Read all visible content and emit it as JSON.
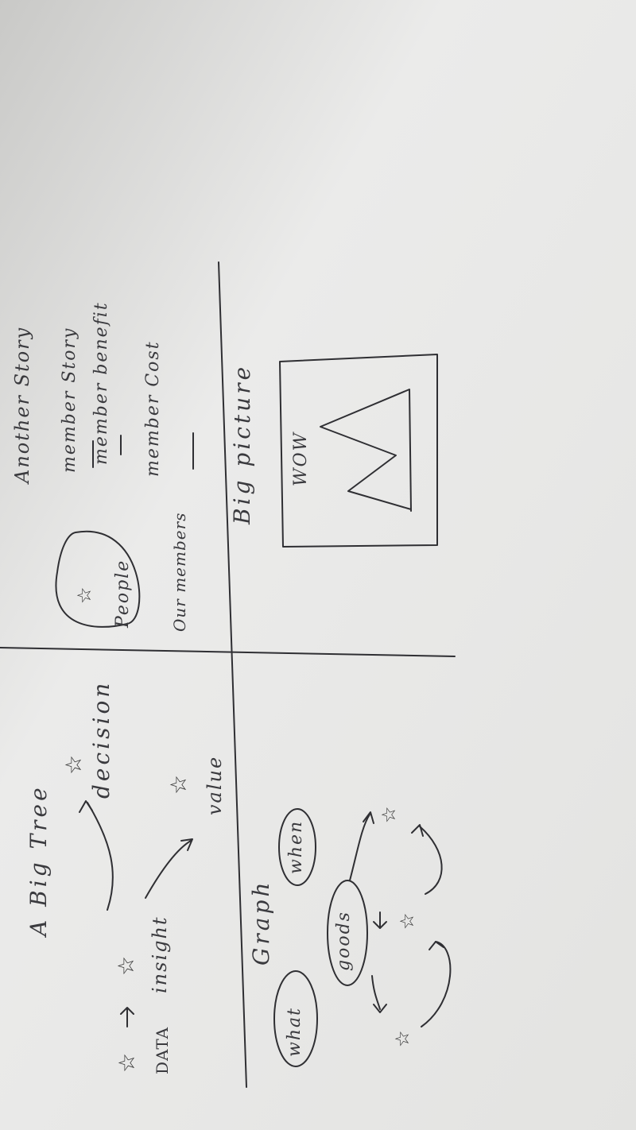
{
  "colors": {
    "paper": "#e9e9e7",
    "paper_shadow": "#bcbcba",
    "ink": "#2f2f33"
  },
  "icons": {
    "star": "☆"
  },
  "q1": {
    "title": "A Big Tree",
    "data_label": "DATA",
    "insight_label": "insight",
    "decision_label": "decision",
    "value_label": "value"
  },
  "q2": {
    "people_label": "People",
    "members_label": "Our members",
    "story_another": "Another Story",
    "story_member": "member Story",
    "member_benefit": "member benefit",
    "member_cost": "member Cost"
  },
  "q3": {
    "title": "Graph",
    "what": "what",
    "when": "when",
    "goods": "goods"
  },
  "q4": {
    "title": "Big picture",
    "wow": "WOW"
  }
}
